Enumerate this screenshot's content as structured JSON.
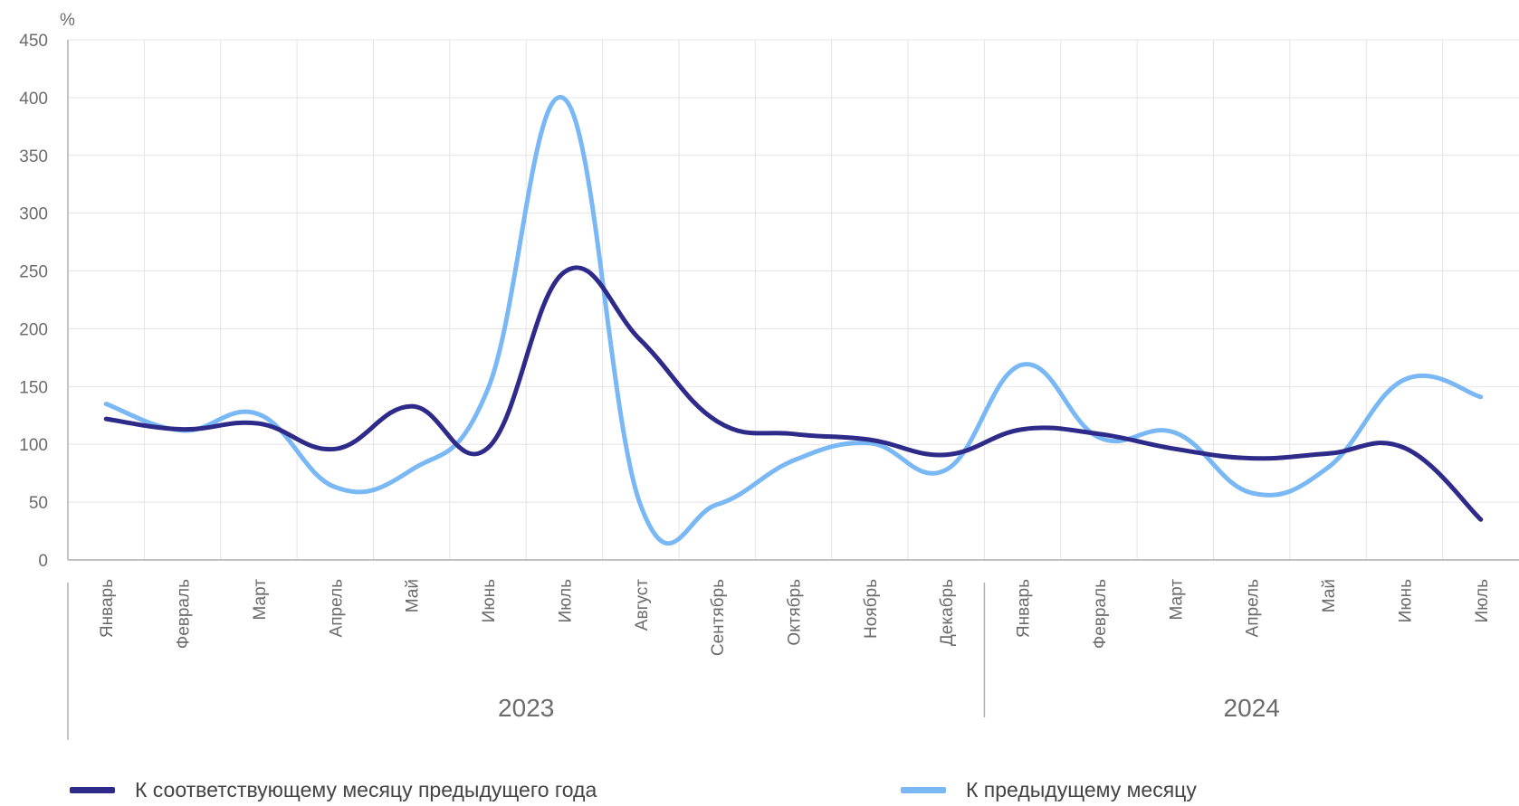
{
  "chart_data": {
    "type": "line",
    "unit_label": "%",
    "ylim": [
      0,
      450
    ],
    "yticks": [
      0,
      50,
      100,
      150,
      200,
      250,
      300,
      350,
      400,
      450
    ],
    "grid": true,
    "legend_position": "bottom",
    "categories": [
      "Январь",
      "Февраль",
      "Март",
      "Апрель",
      "Май",
      "Июнь",
      "Июль",
      "Август",
      "Сентябрь",
      "Октябрь",
      "Ноябрь",
      "Декабрь",
      "Январь",
      "Февраль",
      "Март",
      "Апрель",
      "Май",
      "Июнь",
      "Июль"
    ],
    "groups": [
      {
        "label": "2023",
        "from": 0,
        "to": 11
      },
      {
        "label": "2024",
        "from": 12,
        "to": 18
      }
    ],
    "series": [
      {
        "name": "К соответствующему месяцу предыдущего года",
        "color": "#2e2a8a",
        "values": [
          122,
          113,
          118,
          96,
          133,
          97,
          249,
          190,
          120,
          109,
          104,
          91,
          113,
          109,
          96,
          88,
          92,
          97,
          35
        ]
      },
      {
        "name": "К предыдущему месяцу",
        "color": "#7ab8f5",
        "values": [
          135,
          112,
          126,
          63,
          78,
          148,
          399,
          47,
          48,
          86,
          101,
          78,
          169,
          106,
          110,
          58,
          80,
          156,
          141
        ]
      }
    ]
  }
}
